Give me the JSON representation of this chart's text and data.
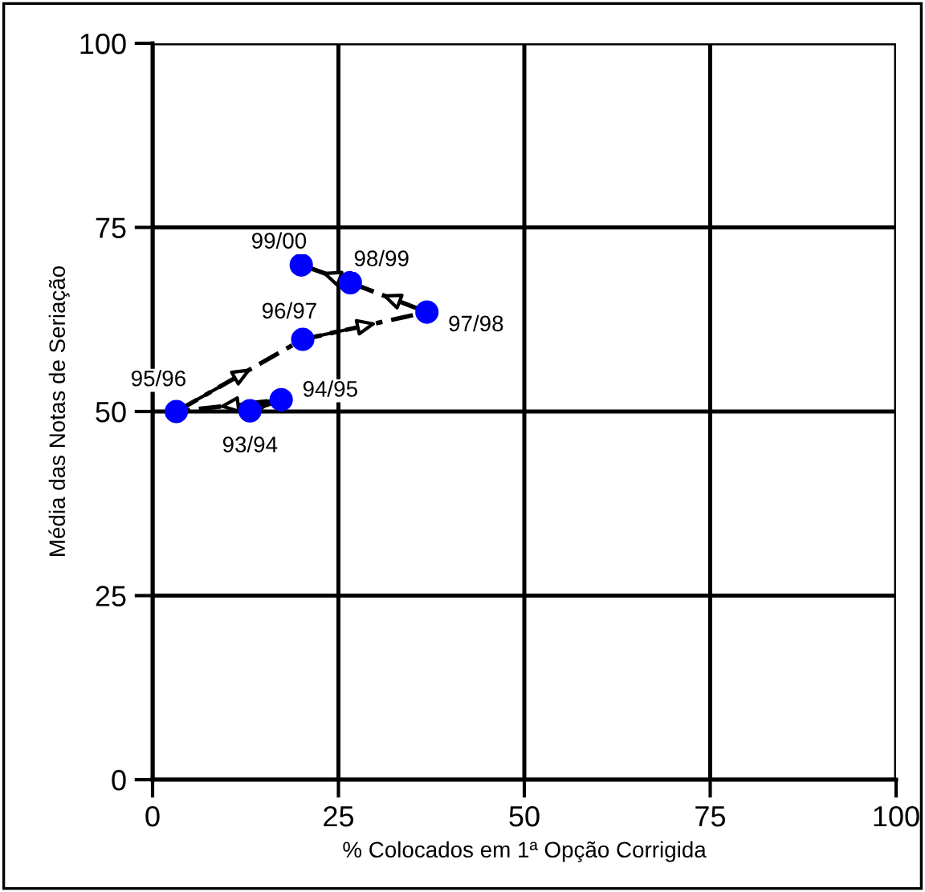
{
  "chart_data": {
    "type": "scatter",
    "xlabel": "% Colocados em 1ª Opção Corrigida",
    "ylabel": "Média das Notas de Seriação",
    "xlim": [
      0,
      100
    ],
    "ylim": [
      0,
      100
    ],
    "xticks": [
      0,
      25,
      50,
      75,
      100
    ],
    "yticks": [
      0,
      25,
      50,
      75,
      100
    ],
    "grid": true,
    "series": [
      {
        "type": "line",
        "color": "#000000",
        "line_style": "dashed",
        "marker": "none",
        "x": [
          13.1,
          17.3,
          3.2,
          20.2,
          36.9,
          26.6,
          20.0
        ],
        "values": [
          50.1,
          51.6,
          50.0,
          59.8,
          63.5,
          67.5,
          69.9
        ]
      },
      {
        "color": "#0000ff",
        "marker": "circle",
        "x": [
          13.1,
          17.3,
          3.2,
          20.2,
          36.9,
          26.6,
          20.0
        ],
        "values": [
          50.1,
          51.6,
          50.0,
          59.8,
          63.5,
          67.5,
          69.9
        ]
      }
    ],
    "annotations": [
      {
        "text": "93/94",
        "x": 13.1,
        "y": 50.1
      },
      {
        "text": "94/95",
        "x": 17.3,
        "y": 51.6
      },
      {
        "text": "95/96",
        "x": 3.2,
        "y": 50.0
      },
      {
        "text": "96/97",
        "x": 20.2,
        "y": 59.8
      },
      {
        "text": "97/98",
        "x": 36.9,
        "y": 63.5
      },
      {
        "text": "98/99",
        "x": 26.6,
        "y": 67.5
      },
      {
        "text": "99/00",
        "x": 20.0,
        "y": 69.9
      }
    ]
  }
}
